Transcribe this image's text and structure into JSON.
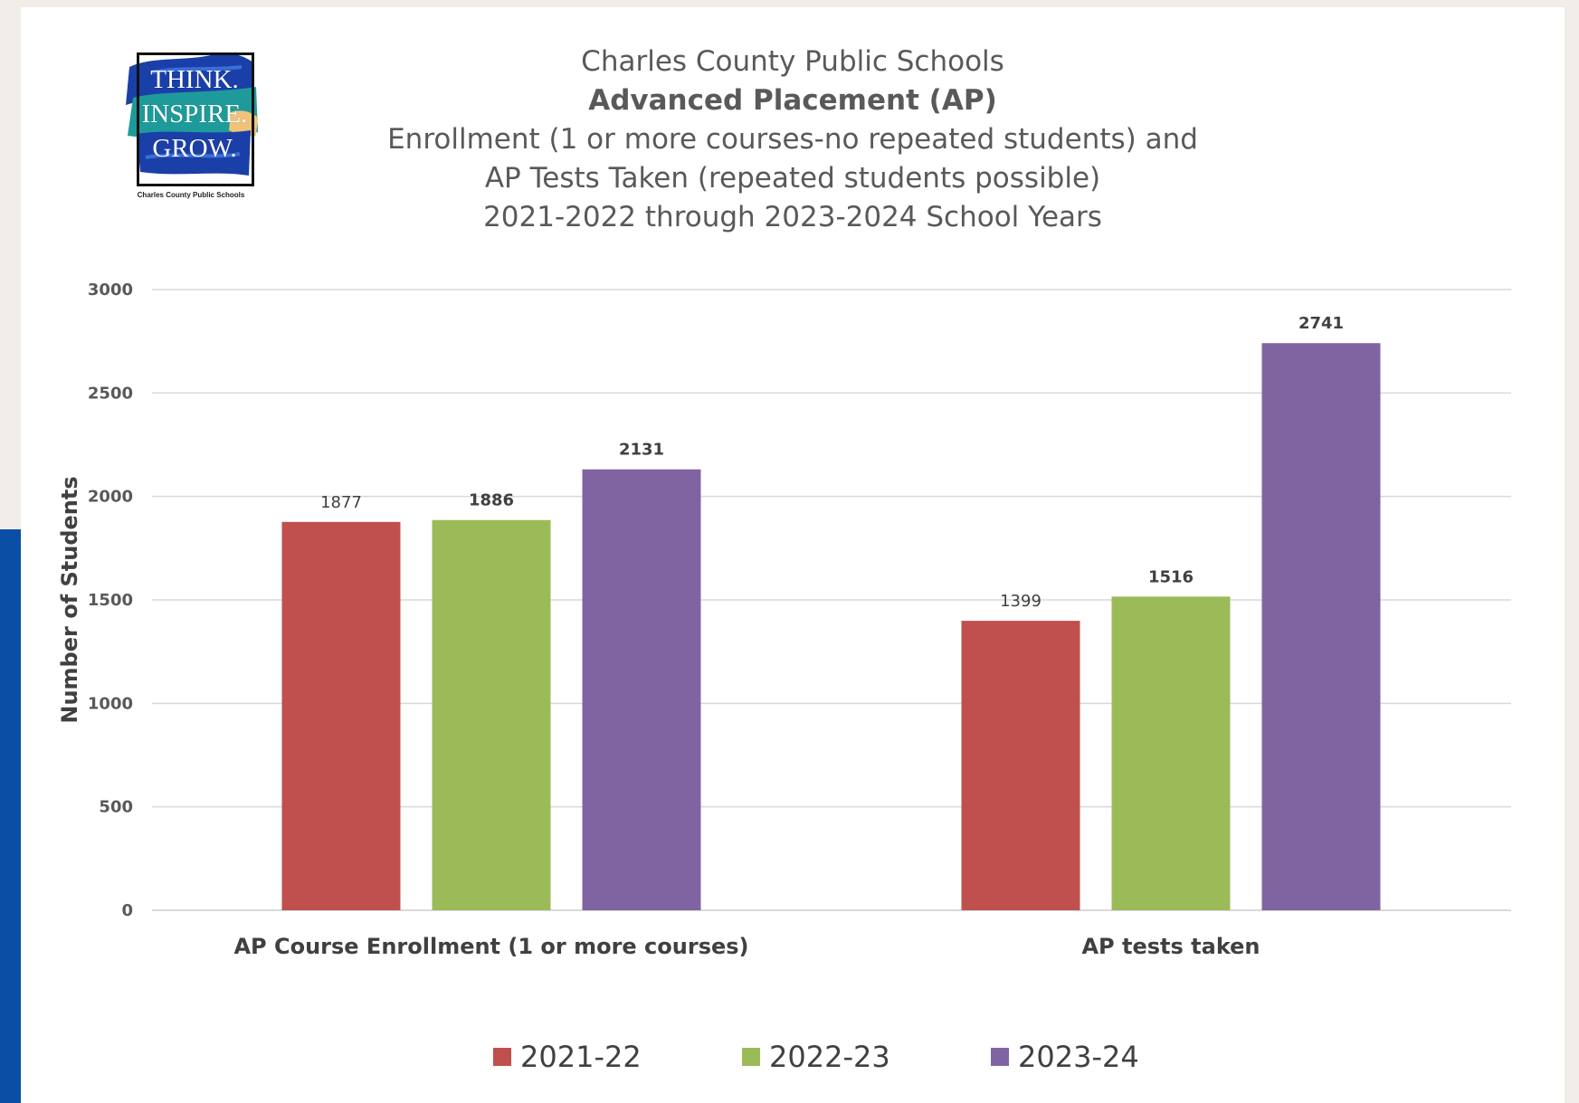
{
  "logo": {
    "lines": [
      "THINK.",
      "INSPIRE.",
      "GROW."
    ],
    "caption": "Charles County Public Schools"
  },
  "header": {
    "line1": "Charles County Public Schools",
    "line2": "Advanced Placement (AP)",
    "line3": "Enrollment (1 or more courses-no repeated students) and",
    "line4": "AP Tests Taken (repeated students possible)",
    "line5": "2021-2022 through 2023-2024 School Years"
  },
  "colors": {
    "series_2021_22": "#c0504d",
    "series_2022_23": "#9bbb59",
    "series_2023_24": "#8064a2",
    "gridline": "#d9d9d9",
    "accent_stripe": "#0a4ea6"
  },
  "chart_data": {
    "type": "bar",
    "categories": [
      "AP Course Enrollment (1 or more courses)",
      "AP tests taken"
    ],
    "series": [
      {
        "name": "2021-22",
        "values": [
          1877,
          1399
        ]
      },
      {
        "name": "2022-23",
        "values": [
          1886,
          1516
        ]
      },
      {
        "name": "2023-24",
        "values": [
          2131,
          2741
        ]
      }
    ],
    "data_labels": [
      [
        "1877",
        "1399"
      ],
      [
        "1886",
        "1516"
      ],
      [
        "2131",
        "2741"
      ]
    ],
    "bold_labels": [
      [
        false,
        false
      ],
      [
        true,
        true
      ],
      [
        true,
        true
      ]
    ],
    "xlabel": "",
    "ylabel": "Number of Students",
    "ylim": [
      0,
      3000
    ],
    "yticks": [
      0,
      500,
      1000,
      1500,
      2000,
      2500,
      3000
    ],
    "grid": true,
    "legend_position": "bottom"
  }
}
